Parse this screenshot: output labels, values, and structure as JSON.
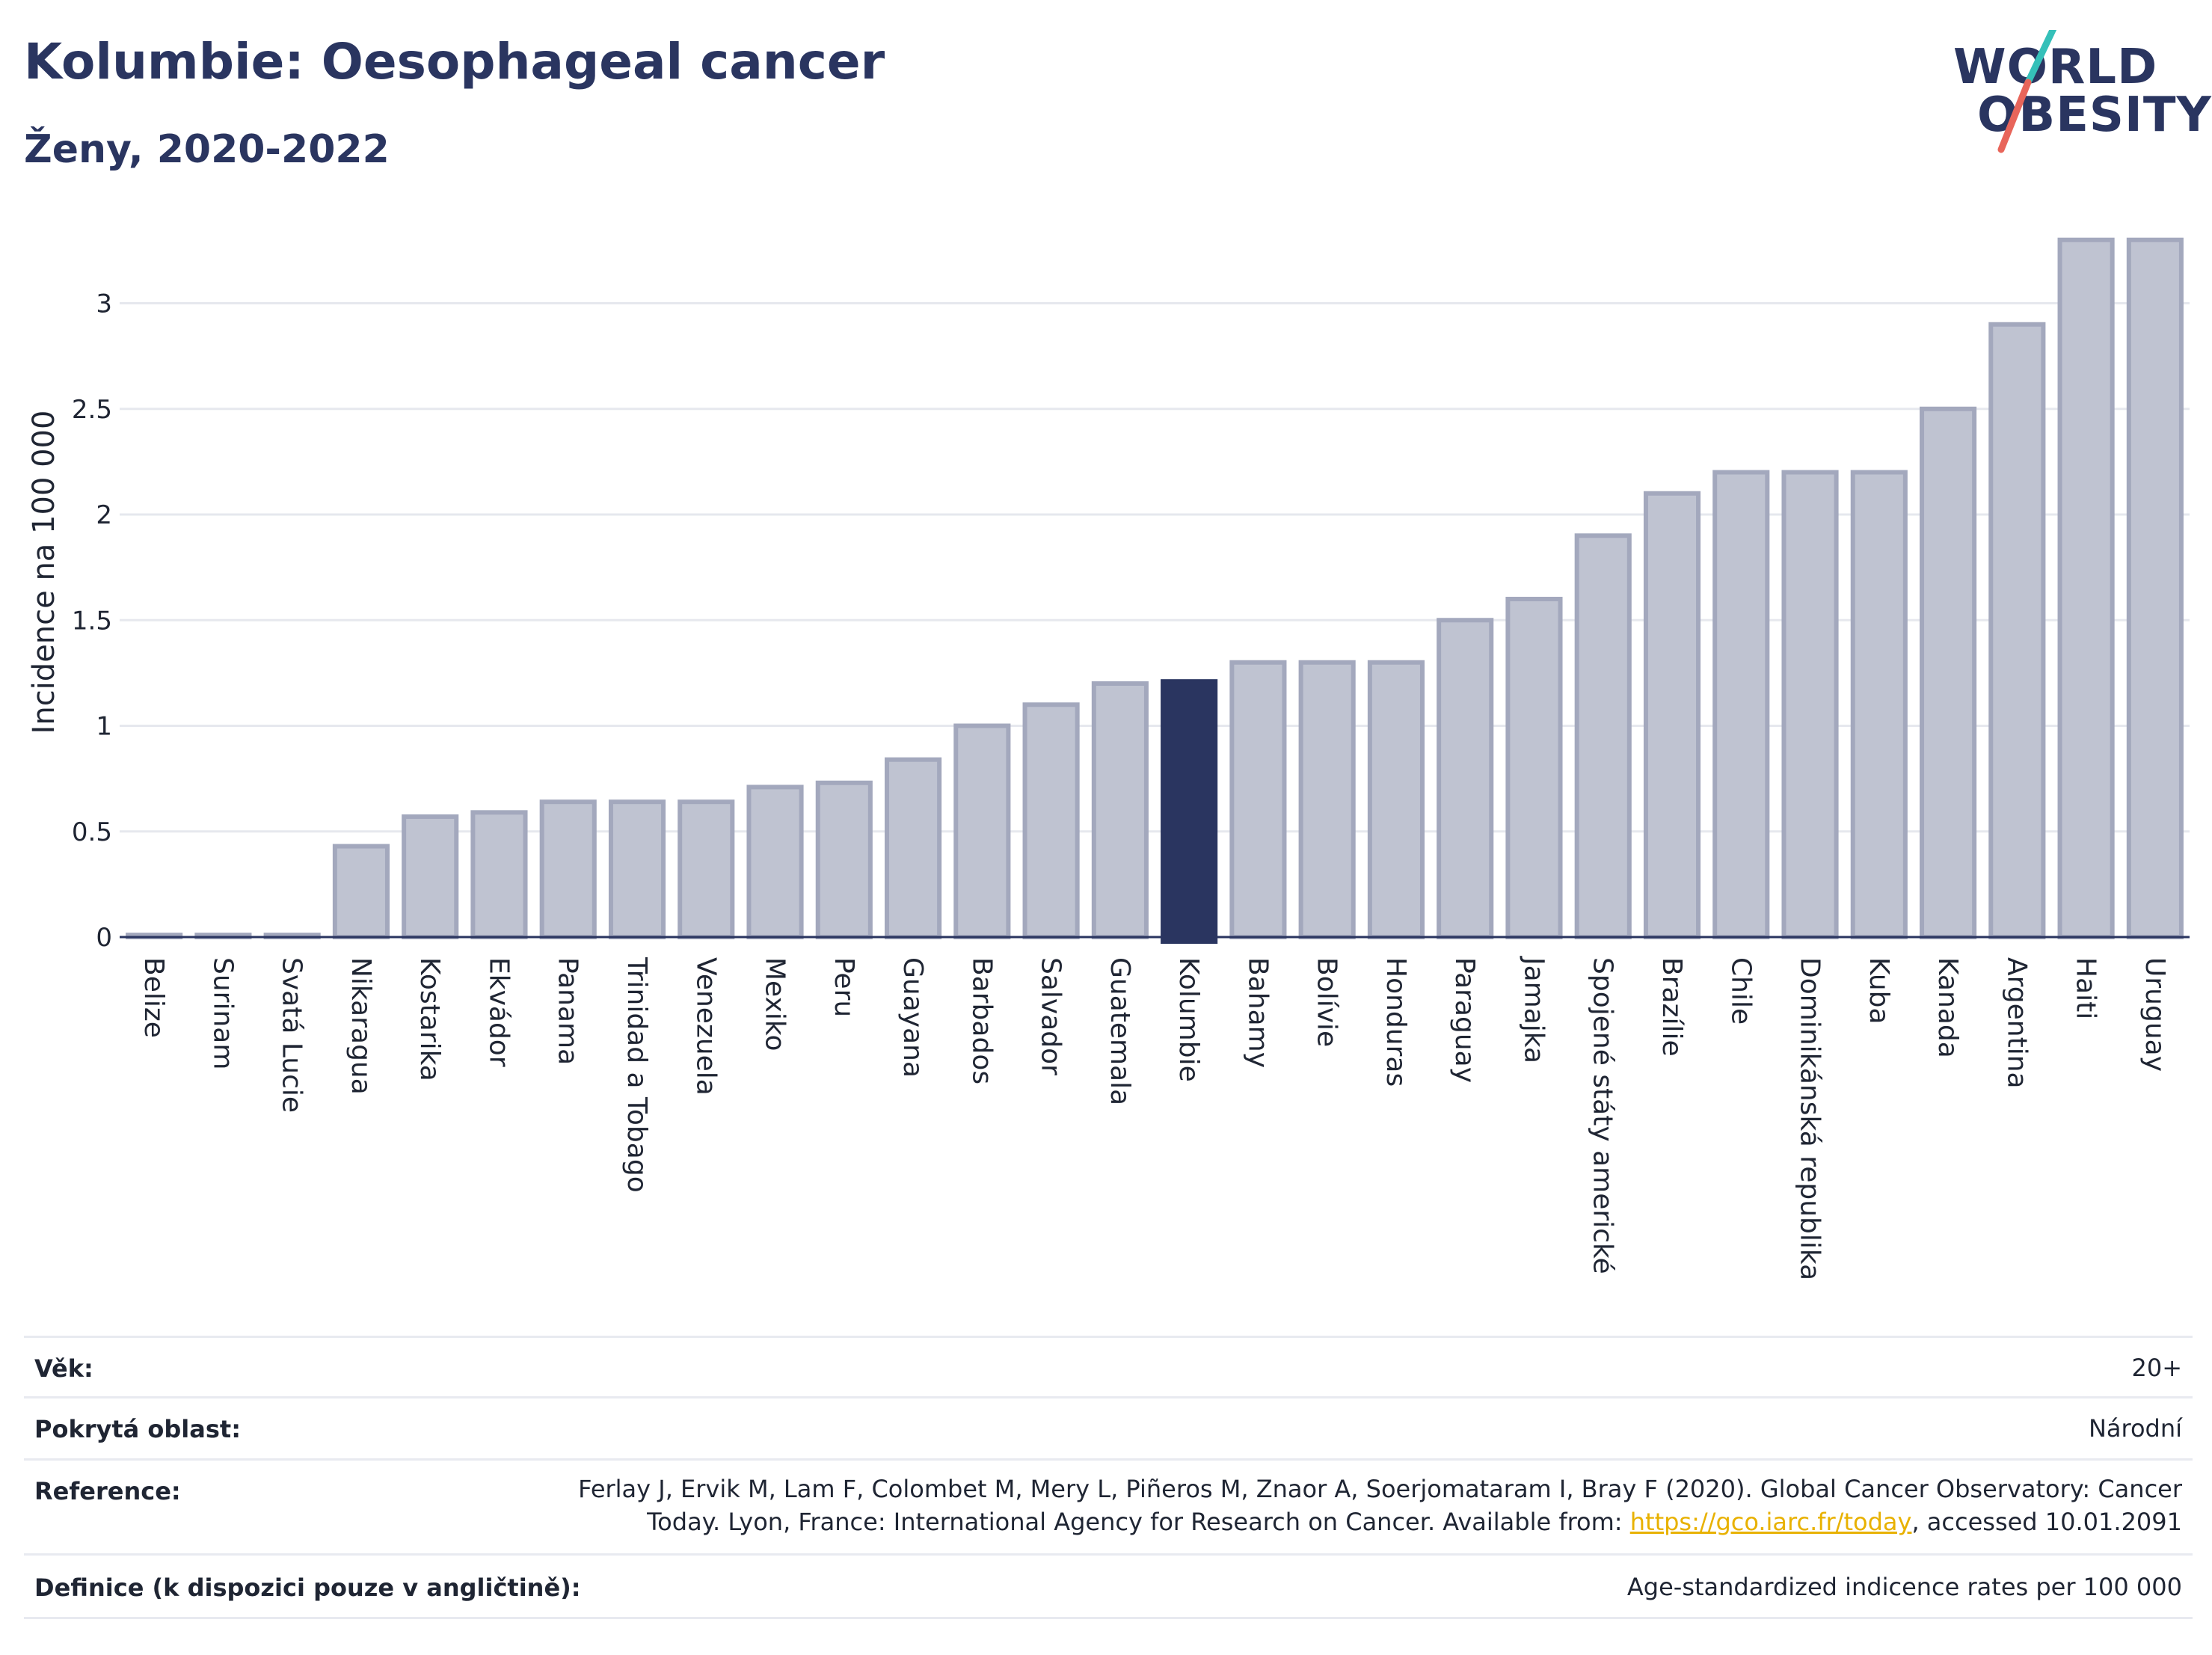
{
  "header": {
    "title": "Kolumbie: Oesophageal cancer",
    "subtitle": "Ženy, 2020-2022"
  },
  "logo": {
    "line1": "WORLD",
    "line2": "OBESITY",
    "accent_colors": [
      "#35c0b9",
      "#e8655a"
    ]
  },
  "colors": {
    "bar": "#bfc3d1",
    "bar_edge": "#a3a8bd",
    "highlight": "#2a3560",
    "grid": "#e6e8ee",
    "axis": "#2a3560"
  },
  "chart_data": {
    "type": "bar",
    "categories": [
      "Belize",
      "Surinam",
      "Svatá Lucie",
      "Nikaragua",
      "Kostarika",
      "Ekvádor",
      "Panama",
      "Trinidad a Tobago",
      "Venezuela",
      "Mexiko",
      "Peru",
      "Guayana",
      "Barbados",
      "Salvador",
      "Guatemala",
      "Kolumbie",
      "Bahamy",
      "Bolívie",
      "Honduras",
      "Paraguay",
      "Jamajka",
      "Spojené státy americké",
      "Brazílie",
      "Chile",
      "Dominikánská republika",
      "Kuba",
      "Kanada",
      "Argentina",
      "Haiti",
      "Uruguay"
    ],
    "values": [
      0.01,
      0.01,
      0.01,
      0.43,
      0.57,
      0.59,
      0.64,
      0.64,
      0.64,
      0.71,
      0.73,
      0.84,
      1.0,
      1.1,
      1.2,
      1.21,
      1.3,
      1.3,
      1.3,
      1.5,
      1.6,
      1.9,
      2.1,
      2.2,
      2.2,
      2.2,
      2.5,
      2.9,
      3.3,
      3.3
    ],
    "highlight": "Kolumbie",
    "ylabel": "Incidence na 100 000",
    "yticks": [
      "0",
      "0.5",
      "1",
      "1.5",
      "2",
      "2.5",
      "3"
    ],
    "ylim": [
      0,
      3.3
    ],
    "grid": true
  },
  "meta": {
    "age_label": "Věk:",
    "age_value": "20+",
    "coverage_label": "Pokrytá oblast:",
    "coverage_value": "Národní",
    "reference_label": "Reference:",
    "reference_line1": "Ferlay J, Ervik M, Lam F, Colombet M, Mery L, Piñeros M, Znaor A, Soerjomataram I, Bray F (2020). Global Cancer Observatory: Cancer",
    "reference_line2_pre": "Today. Lyon, France: International Agency for Research on Cancer. Available from: ",
    "reference_link": "https://gco.iarc.fr/today",
    "reference_line2_post": ", accessed 10.01.2091",
    "definition_label": "Definice (k dispozici pouze v angličtině):",
    "definition_value": "Age-standardized indicence rates per 100 000"
  }
}
